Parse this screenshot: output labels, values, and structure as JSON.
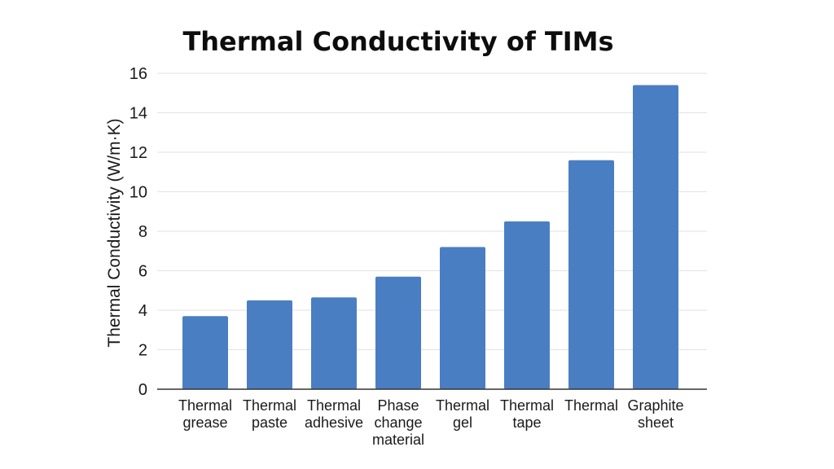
{
  "chart_data": {
    "type": "bar",
    "title": "Thermal Conductivity of TIMs",
    "xlabel": "",
    "ylabel": "Thermal Conductivity (W/m·K)",
    "ylim": [
      0,
      16
    ],
    "yticks": [
      0,
      2,
      4,
      6,
      8,
      10,
      12,
      14,
      16
    ],
    "grid": true,
    "legend": "none",
    "bar_color": "#4a7ec3",
    "categories": [
      [
        "Thermal",
        "grease"
      ],
      [
        "Thermal",
        "paste"
      ],
      [
        "Thermal",
        "adhesive"
      ],
      [
        "Phase",
        "change",
        "material"
      ],
      [
        "Thermal",
        "gel"
      ],
      [
        "Thermal",
        "tape"
      ],
      [
        "Thermal"
      ],
      [
        "Graphite",
        "sheet"
      ]
    ],
    "values": [
      3.7,
      4.5,
      4.65,
      5.7,
      7.2,
      8.5,
      11.6,
      15.4
    ]
  }
}
